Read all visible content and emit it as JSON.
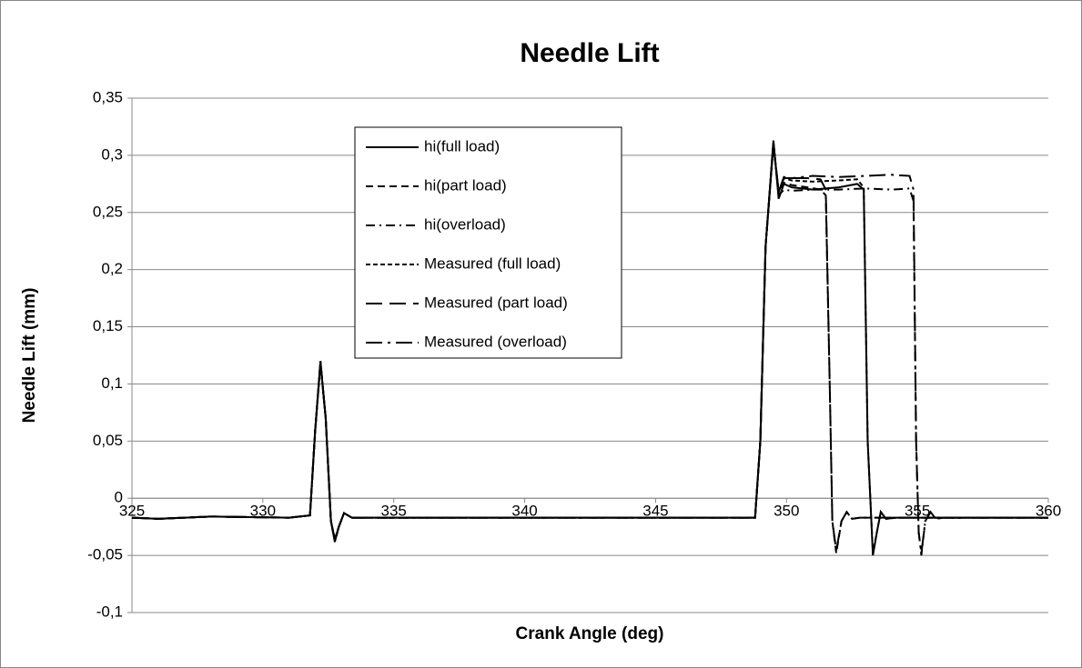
{
  "chart_data": {
    "type": "line",
    "title": "Needle Lift",
    "xlabel": "Crank Angle (deg)",
    "ylabel": "Needle Lift (mm)",
    "xlim": [
      325,
      360
    ],
    "xticks": [
      325,
      330,
      335,
      340,
      345,
      350,
      355,
      360
    ],
    "ylim": [
      -0.1,
      0.35
    ],
    "yticks": [
      {
        "value": -0.1,
        "label": "-0,1"
      },
      {
        "value": -0.05,
        "label": "-0,05"
      },
      {
        "value": 0,
        "label": "0"
      },
      {
        "value": 0.05,
        "label": "0,05"
      },
      {
        "value": 0.1,
        "label": "0,1"
      },
      {
        "value": 0.15,
        "label": "0,15"
      },
      {
        "value": 0.2,
        "label": "0,2"
      },
      {
        "value": 0.25,
        "label": "0,25"
      },
      {
        "value": 0.3,
        "label": "0,3"
      },
      {
        "value": 0.35,
        "label": "0,35"
      }
    ],
    "grid": true,
    "series": [
      {
        "name": "hi(full load)",
        "color": "#000000",
        "dash": "none",
        "x": [
          325,
          326,
          328,
          331,
          331.8,
          332.0,
          332.2,
          332.4,
          332.6,
          332.75,
          332.9,
          333.1,
          333.4,
          335,
          340,
          348.8,
          349.0,
          349.2,
          349.5,
          349.7,
          349.9,
          350.2,
          351,
          352,
          352.7,
          352.95,
          353.1,
          353.3,
          353.45,
          353.6,
          353.8,
          354.2,
          360
        ],
        "values": [
          -0.017,
          -0.018,
          -0.016,
          -0.017,
          -0.015,
          0.06,
          0.12,
          0.07,
          -0.02,
          -0.038,
          -0.025,
          -0.013,
          -0.017,
          -0.017,
          -0.017,
          -0.017,
          0.05,
          0.22,
          0.313,
          0.262,
          0.275,
          0.272,
          0.27,
          0.272,
          0.275,
          0.27,
          0.05,
          -0.05,
          -0.03,
          -0.012,
          -0.018,
          -0.017,
          -0.017
        ]
      },
      {
        "name": "hi(part load)",
        "color": "#000000",
        "dash": "8,5",
        "x": [
          325,
          326,
          328,
          331,
          331.8,
          332.0,
          332.2,
          332.4,
          332.6,
          332.75,
          332.9,
          333.1,
          333.4,
          335,
          340,
          348.8,
          349.0,
          349.2,
          349.5,
          349.7,
          349.9,
          350.2,
          350.8,
          351.3,
          351.5,
          351.65,
          351.75,
          351.9,
          352.1,
          352.3,
          352.5,
          352.8,
          360
        ],
        "values": [
          -0.017,
          -0.018,
          -0.016,
          -0.017,
          -0.015,
          0.06,
          0.12,
          0.07,
          -0.02,
          -0.038,
          -0.025,
          -0.013,
          -0.017,
          -0.017,
          -0.017,
          -0.017,
          0.05,
          0.22,
          0.312,
          0.265,
          0.276,
          0.274,
          0.272,
          0.27,
          0.265,
          0.1,
          -0.02,
          -0.048,
          -0.02,
          -0.012,
          -0.018,
          -0.017,
          -0.017
        ]
      },
      {
        "name": "hi(overload)",
        "color": "#000000",
        "dash": "10,5,2,5",
        "x": [
          325,
          326,
          328,
          331,
          331.8,
          332.0,
          332.2,
          332.4,
          332.6,
          332.75,
          332.9,
          333.1,
          333.4,
          335,
          340,
          348.8,
          349.0,
          349.2,
          349.5,
          349.7,
          349.9,
          350.2,
          351,
          352,
          353,
          354,
          354.7,
          354.85,
          354.95,
          355.05,
          355.15,
          355.3,
          355.5,
          355.7,
          356,
          360
        ],
        "values": [
          -0.017,
          -0.018,
          -0.016,
          -0.017,
          -0.015,
          0.06,
          0.12,
          0.07,
          -0.02,
          -0.038,
          -0.025,
          -0.013,
          -0.017,
          -0.017,
          -0.017,
          -0.017,
          0.05,
          0.22,
          0.31,
          0.265,
          0.27,
          0.269,
          0.27,
          0.27,
          0.271,
          0.27,
          0.271,
          0.26,
          0.05,
          -0.03,
          -0.05,
          -0.02,
          -0.012,
          -0.018,
          -0.017,
          -0.017
        ]
      },
      {
        "name": "Measured (full load)",
        "color": "#000000",
        "dash": "5,3",
        "x": [
          325,
          326,
          328,
          331,
          331.8,
          332.0,
          332.2,
          332.4,
          332.6,
          332.75,
          332.9,
          333.1,
          333.4,
          335,
          340,
          348.8,
          349.0,
          349.2,
          349.5,
          349.7,
          349.9,
          350.2,
          351,
          352,
          352.7,
          352.95,
          353.1,
          353.3,
          353.45,
          353.6,
          353.8,
          354.2,
          360
        ],
        "values": [
          -0.017,
          -0.018,
          -0.016,
          -0.017,
          -0.015,
          0.06,
          0.118,
          0.07,
          -0.02,
          -0.036,
          -0.025,
          -0.013,
          -0.017,
          -0.017,
          -0.017,
          -0.017,
          0.05,
          0.22,
          0.31,
          0.268,
          0.28,
          0.278,
          0.277,
          0.278,
          0.279,
          0.272,
          0.05,
          -0.048,
          -0.03,
          -0.012,
          -0.018,
          -0.017,
          -0.017
        ]
      },
      {
        "name": "Measured (part load)",
        "color": "#000000",
        "dash": "18,8",
        "x": [
          325,
          326,
          328,
          331,
          331.8,
          332.0,
          332.2,
          332.4,
          332.6,
          332.75,
          332.9,
          333.1,
          333.4,
          335,
          340,
          348.8,
          349.0,
          349.2,
          349.5,
          349.7,
          349.9,
          350.2,
          350.8,
          351.3,
          351.5,
          351.65,
          351.75,
          351.9,
          352.1,
          352.3,
          352.5,
          352.8,
          360
        ],
        "values": [
          -0.017,
          -0.018,
          -0.016,
          -0.017,
          -0.015,
          0.06,
          0.118,
          0.07,
          -0.02,
          -0.036,
          -0.025,
          -0.013,
          -0.017,
          -0.017,
          -0.017,
          -0.017,
          0.05,
          0.22,
          0.31,
          0.268,
          0.281,
          0.28,
          0.28,
          0.279,
          0.27,
          0.1,
          -0.02,
          -0.046,
          -0.02,
          -0.012,
          -0.018,
          -0.017,
          -0.017
        ]
      },
      {
        "name": "Measured (overload)",
        "color": "#000000",
        "dash": "18,6,3,6",
        "x": [
          325,
          326,
          328,
          331,
          331.8,
          332.0,
          332.2,
          332.4,
          332.6,
          332.75,
          332.9,
          333.1,
          333.4,
          335,
          340,
          348.8,
          349.0,
          349.2,
          349.5,
          349.7,
          349.9,
          350.2,
          351,
          352,
          353,
          354,
          354.7,
          354.85,
          354.95,
          355.05,
          355.15,
          355.3,
          355.5,
          355.7,
          356,
          360
        ],
        "values": [
          -0.017,
          -0.018,
          -0.016,
          -0.017,
          -0.015,
          0.06,
          0.118,
          0.07,
          -0.02,
          -0.036,
          -0.025,
          -0.013,
          -0.017,
          -0.017,
          -0.017,
          -0.017,
          0.05,
          0.22,
          0.31,
          0.268,
          0.28,
          0.28,
          0.282,
          0.281,
          0.282,
          0.283,
          0.282,
          0.27,
          0.05,
          -0.03,
          -0.048,
          -0.02,
          -0.012,
          -0.018,
          -0.017,
          -0.017
        ]
      }
    ]
  }
}
